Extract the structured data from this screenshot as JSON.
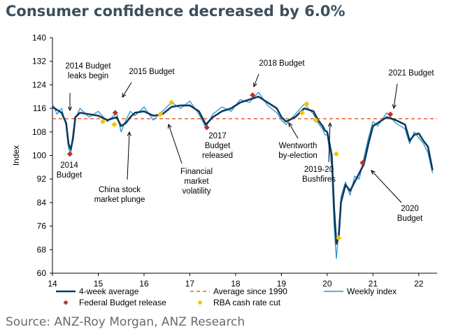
{
  "title": "Consumer confidence decreased by 6.0%",
  "source": "Source: ANZ-Roy Morgan, ANZ Research",
  "chart_data": {
    "type": "line",
    "ylabel": "Index",
    "xlabel": "",
    "xlim": [
      14,
      22.4
    ],
    "ylim": [
      60,
      140
    ],
    "x_ticks": [
      14,
      15,
      16,
      17,
      18,
      19,
      20,
      21,
      22
    ],
    "y_ticks": [
      60,
      68,
      76,
      84,
      92,
      100,
      108,
      116,
      124,
      132,
      140
    ],
    "colors": {
      "avg4": "#0b3b60",
      "weekly": "#2f93c8",
      "avg1990": "#e8602c",
      "budget": "#c0302b",
      "rba": "#f2c500"
    },
    "average_since_1990": 112.5,
    "series": [
      {
        "name": "4-week average",
        "style": "line-thick",
        "color": "#0b3b60",
        "x": [
          14.0,
          14.1,
          14.2,
          14.3,
          14.35,
          14.4,
          14.45,
          14.5,
          14.6,
          14.8,
          15.0,
          15.2,
          15.4,
          15.5,
          15.6,
          15.7,
          15.8,
          16.0,
          16.2,
          16.4,
          16.6,
          16.8,
          17.0,
          17.2,
          17.35,
          17.5,
          17.7,
          17.9,
          18.1,
          18.3,
          18.5,
          18.7,
          18.9,
          19.0,
          19.1,
          19.3,
          19.5,
          19.7,
          19.8,
          19.9,
          19.95,
          20.0,
          20.1,
          20.15,
          20.2,
          20.25,
          20.3,
          20.4,
          20.5,
          20.6,
          20.7,
          20.8,
          20.9,
          21.0,
          21.1,
          21.3,
          21.5,
          21.7,
          21.8,
          21.9,
          22.0,
          22.1,
          22.2,
          22.3
        ],
        "values": [
          116.5,
          115.5,
          114.5,
          111,
          104,
          102,
          106,
          113,
          114.5,
          114,
          113.5,
          112,
          113,
          110,
          111,
          113,
          114.5,
          115,
          113.5,
          114,
          116.5,
          117,
          117,
          115,
          110.5,
          113,
          115,
          116,
          118,
          119,
          120,
          118,
          116,
          113,
          111.5,
          113,
          116,
          115,
          112,
          110,
          108.5,
          108,
          100,
          82,
          70,
          72,
          84,
          90,
          88,
          91,
          94,
          97,
          104,
          110,
          111,
          113,
          112,
          110.5,
          105,
          107,
          107.5,
          105,
          103,
          95
        ]
      },
      {
        "name": "Weekly index",
        "style": "line-thin",
        "color": "#2f93c8",
        "x": [
          14.0,
          14.1,
          14.2,
          14.3,
          14.35,
          14.4,
          14.45,
          14.5,
          14.6,
          14.8,
          15.0,
          15.2,
          15.4,
          15.5,
          15.6,
          15.7,
          15.8,
          16.0,
          16.2,
          16.4,
          16.6,
          16.8,
          17.0,
          17.2,
          17.35,
          17.5,
          17.7,
          17.9,
          18.1,
          18.3,
          18.5,
          18.7,
          18.9,
          19.0,
          19.1,
          19.3,
          19.5,
          19.7,
          19.8,
          19.9,
          19.95,
          20.0,
          20.1,
          20.15,
          20.2,
          20.25,
          20.3,
          20.4,
          20.5,
          20.6,
          20.7,
          20.8,
          20.9,
          21.0,
          21.1,
          21.3,
          21.5,
          21.7,
          21.8,
          21.9,
          22.0,
          22.1,
          22.2,
          22.3
        ],
        "values": [
          117.5,
          114,
          116,
          110,
          102.5,
          100.5,
          108,
          112.5,
          116,
          113,
          115,
          111.5,
          114.5,
          108,
          112,
          115,
          113.5,
          116.5,
          112,
          115,
          118,
          116,
          118.5,
          114,
          109.5,
          114,
          116.5,
          115,
          119,
          118,
          121.5,
          117,
          114.5,
          112,
          110.5,
          114,
          117.5,
          114,
          111,
          109,
          107,
          107,
          96,
          76,
          65,
          74,
          86,
          91,
          86.5,
          93,
          92,
          99,
          106,
          111.5,
          110,
          114.5,
          111,
          109,
          104,
          108,
          106,
          104,
          101,
          94
        ]
      }
    ],
    "markers": [
      {
        "name": "Federal Budget release",
        "shape": "diamond",
        "color": "#c0302b",
        "points": [
          {
            "x": 14.38,
            "y": 100.5
          },
          {
            "x": 15.37,
            "y": 114.5
          },
          {
            "x": 17.37,
            "y": 109.5
          },
          {
            "x": 18.37,
            "y": 120.5
          },
          {
            "x": 20.77,
            "y": 97.5
          },
          {
            "x": 21.38,
            "y": 114
          }
        ]
      },
      {
        "name": "RBA cash rate cut",
        "shape": "diamond",
        "color": "#f2c500",
        "points": [
          {
            "x": 15.1,
            "y": 111.5
          },
          {
            "x": 15.35,
            "y": 110.5
          },
          {
            "x": 16.35,
            "y": 114
          },
          {
            "x": 16.6,
            "y": 118
          },
          {
            "x": 19.45,
            "y": 114.5
          },
          {
            "x": 19.55,
            "y": 117.5
          },
          {
            "x": 19.75,
            "y": 112
          },
          {
            "x": 20.2,
            "y": 100.5
          },
          {
            "x": 20.25,
            "y": 72
          }
        ]
      }
    ],
    "annotations": [
      {
        "id": "a2014leak",
        "lines": [
          "2014 Budget",
          "leaks begin"
        ]
      },
      {
        "id": "a2015",
        "lines": [
          "2015 Budget"
        ]
      },
      {
        "id": "a2018",
        "lines": [
          "2018 Budget"
        ]
      },
      {
        "id": "a2021",
        "lines": [
          "2021 Budget"
        ]
      },
      {
        "id": "a2014",
        "lines": [
          "2014",
          "Budget"
        ]
      },
      {
        "id": "achina",
        "lines": [
          "China stock",
          "market plunge"
        ]
      },
      {
        "id": "afin",
        "lines": [
          "Financial",
          "market",
          "volatility"
        ]
      },
      {
        "id": "a2017",
        "lines": [
          "2017",
          "Budget",
          "released"
        ]
      },
      {
        "id": "awent",
        "lines": [
          "Wentworth",
          "by-election"
        ]
      },
      {
        "id": "abush",
        "lines": [
          "2019-20",
          "Bushfires"
        ]
      },
      {
        "id": "a2020",
        "lines": [
          "2020",
          "Budget"
        ]
      }
    ],
    "legend": [
      {
        "label": "4-week average",
        "kind": "line-thick",
        "color": "#0b3b60"
      },
      {
        "label": "Average since 1990",
        "kind": "dashed",
        "color": "#e8602c"
      },
      {
        "label": "Weekly index",
        "kind": "line-thin",
        "color": "#2f93c8"
      },
      {
        "label": "Federal Budget release",
        "kind": "diamond",
        "color": "#c0302b"
      },
      {
        "label": "RBA cash rate cut",
        "kind": "diamond",
        "color": "#f2c500"
      }
    ]
  }
}
